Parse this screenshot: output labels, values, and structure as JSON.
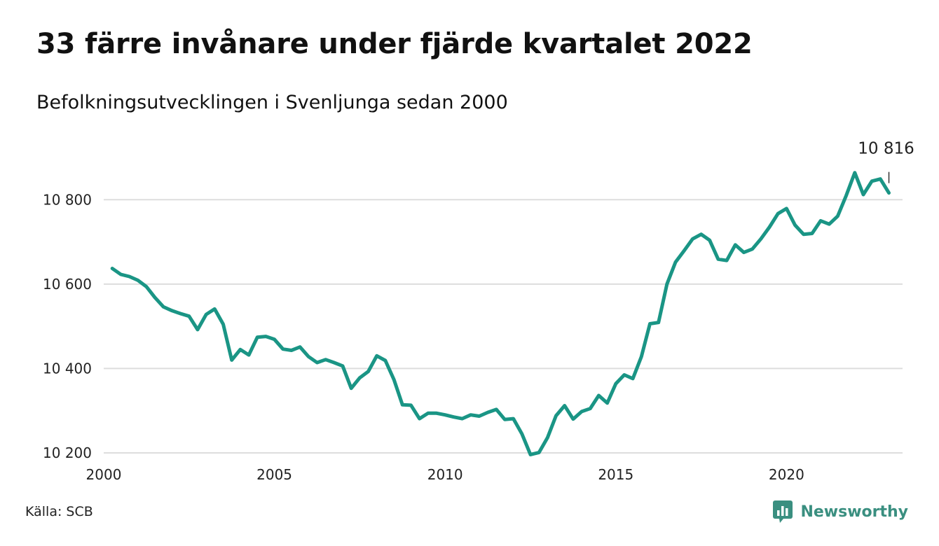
{
  "title": "33 färre invånare under fjärde kvartalet 2022",
  "subtitle": "Befolkningsutvecklingen i Svenljunga sedan 2000",
  "source": "Källa: SCB",
  "brand": {
    "name": "Newsworthy",
    "icon": "newsworthy-logo-icon"
  },
  "colors": {
    "line": "#1a9585",
    "grid": "#dddddd",
    "text": "#111111",
    "brand": "#3a8f80"
  },
  "chart_data": {
    "type": "line",
    "title": "33 färre invånare under fjärde kvartalet 2022",
    "subtitle": "Befolkningsutvecklingen i Svenljunga sedan 2000",
    "xlabel": "",
    "ylabel": "",
    "xlim": [
      2000.0,
      2023.4
    ],
    "ylim": [
      10190,
      10900
    ],
    "x_ticks": [
      2000,
      2005,
      2010,
      2015,
      2020
    ],
    "x_tick_labels": [
      "2000",
      "2005",
      "2010",
      "2015",
      "2020"
    ],
    "y_ticks": [
      10200,
      10400,
      10600,
      10800
    ],
    "y_tick_labels": [
      "10 200",
      "10 400",
      "10 600",
      "10 800"
    ],
    "grid": true,
    "last_value_label": "10 816",
    "series": [
      {
        "x": [
          2000.25,
          2000.5,
          2000.75,
          2001.0,
          2001.25,
          2001.5,
          2001.75,
          2002.0,
          2002.25,
          2002.5,
          2002.75,
          2003.0,
          2003.25,
          2003.5,
          2003.75,
          2004.0,
          2004.25,
          2004.5,
          2004.75,
          2005.0,
          2005.25,
          2005.5,
          2005.75,
          2006.0,
          2006.25,
          2006.5,
          2006.75,
          2007.0,
          2007.25,
          2007.5,
          2007.75,
          2008.0,
          2008.25,
          2008.5,
          2008.75,
          2009.0,
          2009.25,
          2009.5,
          2009.75,
          2010.0,
          2010.25,
          2010.5,
          2010.75,
          2011.0,
          2011.25,
          2011.5,
          2011.75,
          2012.0,
          2012.25,
          2012.5,
          2012.75,
          2013.0,
          2013.25,
          2013.5,
          2013.75,
          2014.0,
          2014.25,
          2014.5,
          2014.75,
          2015.0,
          2015.25,
          2015.5,
          2015.75,
          2016.0,
          2016.25,
          2016.5,
          2016.75,
          2017.0,
          2017.25,
          2017.5,
          2017.75,
          2018.0,
          2018.25,
          2018.5,
          2018.75,
          2019.0,
          2019.25,
          2019.5,
          2019.75,
          2020.0,
          2020.25,
          2020.5,
          2020.75,
          2021.0,
          2021.25,
          2021.5,
          2021.75,
          2022.0,
          2022.25,
          2022.5,
          2022.75,
          2023.0
        ],
        "y": [
          10637,
          10623,
          10618,
          10609,
          10594,
          10568,
          10546,
          10537,
          10530,
          10524,
          10492,
          10528,
          10541,
          10505,
          10420,
          10445,
          10432,
          10474,
          10476,
          10469,
          10446,
          10443,
          10451,
          10428,
          10414,
          10421,
          10414,
          10406,
          10353,
          10378,
          10393,
          10430,
          10419,
          10374,
          10314,
          10313,
          10281,
          10294,
          10294,
          10290,
          10285,
          10281,
          10290,
          10287,
          10296,
          10303,
          10279,
          10281,
          10245,
          10196,
          10201,
          10236,
          10288,
          10312,
          10280,
          10298,
          10305,
          10336,
          10318,
          10364,
          10385,
          10376,
          10428,
          10506,
          10509,
          10600,
          10652,
          10679,
          10707,
          10718,
          10704,
          10659,
          10656,
          10693,
          10675,
          10683,
          10707,
          10735,
          10767,
          10779,
          10740,
          10718,
          10720,
          10750,
          10742,
          10761,
          10810,
          10864,
          10812,
          10844,
          10849,
          10816
        ]
      }
    ]
  }
}
